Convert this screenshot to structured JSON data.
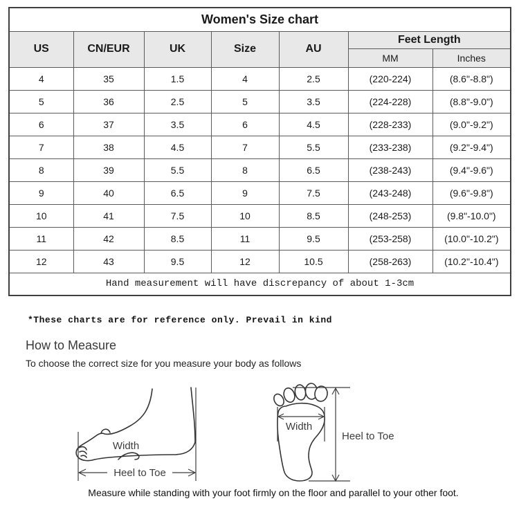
{
  "table": {
    "title": "Women's Size chart",
    "columns": [
      "US",
      "CN/EUR",
      "UK",
      "Size",
      "AU"
    ],
    "feet_length_header": "Feet Length",
    "feet_length_sub": [
      "MM",
      "Inches"
    ],
    "rows": [
      [
        "4",
        "35",
        "1.5",
        "4",
        "2.5",
        "(220-224)",
        "(8.6\"-8.8\")"
      ],
      [
        "5",
        "36",
        "2.5",
        "5",
        "3.5",
        "(224-228)",
        "(8.8\"-9.0\")"
      ],
      [
        "6",
        "37",
        "3.5",
        "6",
        "4.5",
        "(228-233)",
        "(9.0\"-9.2\")"
      ],
      [
        "7",
        "38",
        "4.5",
        "7",
        "5.5",
        "(233-238)",
        "(9.2\"-9.4\")"
      ],
      [
        "8",
        "39",
        "5.5",
        "8",
        "6.5",
        "(238-243)",
        "(9.4\"-9.6\")"
      ],
      [
        "9",
        "40",
        "6.5",
        "9",
        "7.5",
        "(243-248)",
        "(9.6\"-9.8\")"
      ],
      [
        "10",
        "41",
        "7.5",
        "10",
        "8.5",
        "(248-253)",
        "(9.8\"-10.0\")"
      ],
      [
        "11",
        "42",
        "8.5",
        "11",
        "9.5",
        "(253-258)",
        "(10.0\"-10.2\")"
      ],
      [
        "12",
        "43",
        "9.5",
        "12",
        "10.5",
        "(258-263)",
        "(10.2\"-10.4\")"
      ]
    ],
    "footnote": "Hand measurement will have discrepancy of about 1-3cm"
  },
  "notes": {
    "reference_note": "*These charts are for reference only. Prevail in kind",
    "how_to_measure_title": "How to Measure",
    "how_to_measure_subtitle": "To choose the correct size for you measure your body as follows",
    "bottom_caption": "Measure while standing with your foot firmly on the floor and parallel to your other foot."
  },
  "diagrams": {
    "side_view": {
      "width_label": "Width",
      "length_label": "Heel to Toe"
    },
    "top_view": {
      "width_label": "Width",
      "length_label": "Heel to Toe"
    }
  },
  "colors": {
    "header_bg": "#e8e8e8",
    "border_dark": "#404040",
    "border_light": "#595959",
    "text": "#1a1a1a",
    "diagram_stroke": "#333333"
  }
}
